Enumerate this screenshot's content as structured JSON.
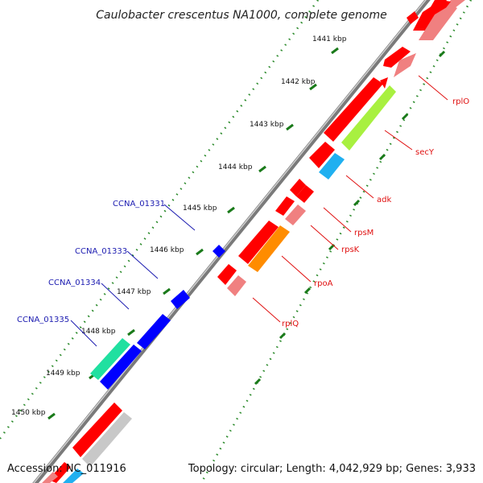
{
  "title": "Caulobacter crescentus NA1000, complete genome",
  "footer": {
    "accession": "Accession: NC_011916",
    "topology": "Topology: circular; Length: 4,042,929 bp; Genes: 3,933"
  },
  "ticks": [
    {
      "label": "1441 kbp"
    },
    {
      "label": "1442 kbp"
    },
    {
      "label": "1443 kbp"
    },
    {
      "label": "1444 kbp"
    },
    {
      "label": "1445 kbp"
    },
    {
      "label": "1446 kbp"
    },
    {
      "label": "1447 kbp"
    },
    {
      "label": "1448 kbp"
    },
    {
      "label": "1449 kbp"
    },
    {
      "label": "1450 kbp"
    }
  ],
  "genes_right": [
    {
      "label": "rplO"
    },
    {
      "label": "secY"
    },
    {
      "label": "adk"
    },
    {
      "label": "rpsM"
    },
    {
      "label": "rpsK"
    },
    {
      "label": "rpoA"
    },
    {
      "label": "rplQ"
    }
  ],
  "genes_left": [
    {
      "label": "CCNA_01331"
    },
    {
      "label": "CCNA_01333"
    },
    {
      "label": "CCNA_01334"
    },
    {
      "label": "CCNA_01335"
    }
  ],
  "colors": {
    "cds": "#ff0000",
    "gene": "#f08080",
    "secY": "#a8f040",
    "adk": "#20b0f0",
    "rpoA": "#ff8c00",
    "minus_strand": "#0000ff",
    "minus_teal": "#20e0a0",
    "tick": "#1a7a1a",
    "backbone": "#888888",
    "label_right": "#e01010",
    "label_left": "#1a1ab0"
  }
}
